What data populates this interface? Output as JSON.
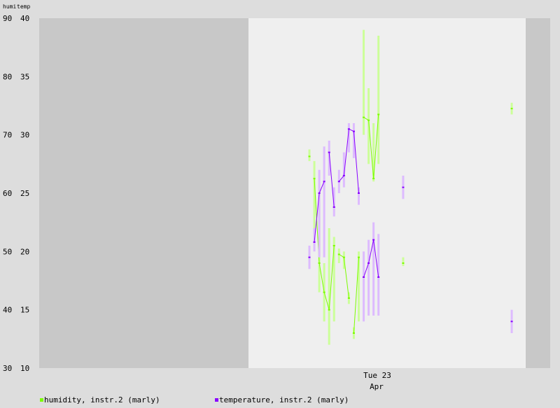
{
  "chart_data": {
    "type": "line",
    "ylabel_left": "humi",
    "ylabel_right": "temp",
    "ylim_humidity": [
      30,
      90
    ],
    "ylim_temperature": [
      10,
      40
    ],
    "humidity_ticks": [
      90,
      80,
      70,
      60,
      50,
      40,
      30
    ],
    "temperature_ticks": [
      40,
      35,
      30,
      25,
      20,
      15,
      10
    ],
    "x_tick_label": "Tue 23",
    "x_tick_sublabel": "Apr",
    "grid": false,
    "legend_placement": "bottom-left",
    "series": [
      {
        "name": "humidity, instr.2 (marly)",
        "color": "#7cfc00",
        "range_color": "#ccff99",
        "segments": [
          {
            "x": [
              0.0
            ],
            "y": [
              66.3
            ],
            "min": [
              65.5
            ],
            "max": [
              67.5
            ]
          },
          {
            "x": [
              1.0,
              2.0,
              3.0,
              4.0,
              5.0
            ],
            "y": [
              62.5,
              48.0,
              43.0,
              40.0,
              51.0
            ],
            "min": [
              53.0,
              43.0,
              38.0,
              34.0,
              38.0
            ],
            "max": [
              65.5,
              56.0,
              48.0,
              54.0,
              52.5
            ]
          },
          {
            "x": [
              6.0,
              7.0,
              8.0
            ],
            "y": [
              49.5,
              49.0,
              42.0
            ],
            "min": [
              48.0,
              47.0,
              41.0
            ],
            "max": [
              50.5,
              50.0,
              43.0
            ]
          },
          {
            "x": [
              9.0,
              10.0
            ],
            "y": [
              36.0,
              49.0
            ],
            "min": [
              35.0,
              38.0
            ],
            "max": [
              37.0,
              50.0
            ]
          },
          {
            "x": [
              11.0,
              12.0,
              13.0,
              14.0
            ],
            "y": [
              73.0,
              72.5,
              62.5,
              73.5
            ],
            "min": [
              70.0,
              65.0,
              62.0,
              65.0
            ],
            "max": [
              88.0,
              78.0,
              72.0,
              87.0
            ]
          },
          {
            "x": [
              19.0
            ],
            "y": [
              48.0
            ],
            "min": [
              47.5
            ],
            "max": [
              49.0
            ]
          },
          {
            "x": [
              41.0
            ],
            "y": [
              74.5
            ],
            "min": [
              73.5
            ],
            "max": [
              75.5
            ]
          }
        ]
      },
      {
        "name": "temperature, instr.2 (marly)",
        "color": "#8800ff",
        "range_color": "#ddbbff",
        "segments": [
          {
            "x": [
              0.0
            ],
            "y": [
              19.5
            ],
            "min": [
              18.5
            ],
            "max": [
              20.5
            ]
          },
          {
            "x": [
              1.0,
              2.0,
              3.0
            ],
            "y": [
              20.8,
              25.0,
              26.0
            ],
            "min": [
              20.0,
              19.5,
              19.5
            ],
            "max": [
              22.0,
              27.0,
              29.0
            ]
          },
          {
            "x": [
              4.0,
              5.0
            ],
            "y": [
              28.5,
              23.8
            ],
            "min": [
              26.5,
              23.0
            ],
            "max": [
              29.5,
              25.5
            ]
          },
          {
            "x": [
              6.0,
              7.0,
              8.0,
              9.0,
              10.0
            ],
            "y": [
              26.0,
              26.5,
              30.5,
              30.3,
              25.0
            ],
            "min": [
              25.0,
              25.5,
              28.5,
              28.0,
              24.0
            ],
            "max": [
              27.0,
              28.5,
              31.0,
              31.0,
              25.5
            ]
          },
          {
            "x": [
              11.0,
              12.0,
              13.0,
              14.0
            ],
            "y": [
              17.8,
              19.0,
              21.0,
              17.8
            ],
            "min": [
              14.0,
              14.5,
              14.5,
              14.5
            ],
            "max": [
              20.0,
              21.0,
              22.5,
              21.5
            ]
          },
          {
            "x": [
              19.0
            ],
            "y": [
              25.5
            ],
            "min": [
              24.5
            ],
            "max": [
              26.5
            ]
          },
          {
            "x": [
              41.0
            ],
            "y": [
              14.0
            ],
            "min": [
              13.0
            ],
            "max": [
              15.0
            ]
          }
        ]
      }
    ]
  }
}
